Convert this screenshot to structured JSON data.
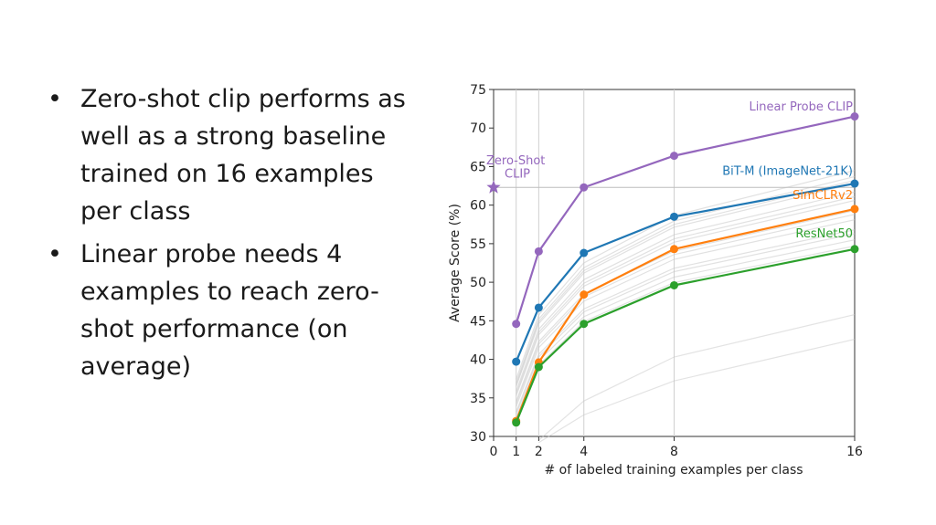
{
  "slide": {
    "bullets": [
      "Zero-shot clip performs as well as a strong baseline trained on 16 examples per class",
      "Linear probe needs 4 examples to reach zero-shot performance (on average)"
    ],
    "bullet_glyph": "•"
  },
  "chart_data": {
    "type": "line",
    "xlabel": "# of labeled training examples per class",
    "ylabel": "Average Score (%)",
    "xlim": [
      0,
      16
    ],
    "ylim": [
      30,
      75
    ],
    "xticks": [
      0,
      1,
      2,
      4,
      8,
      16
    ],
    "yticks": [
      30,
      35,
      40,
      45,
      50,
      55,
      60,
      65,
      70,
      75
    ],
    "grid": "vertical at x ticks",
    "x": [
      1,
      2,
      4,
      8,
      16
    ],
    "series": [
      {
        "name": "Linear Probe CLIP",
        "color": "#9467bd",
        "values": [
          44.6,
          54.0,
          62.3,
          66.4,
          71.5
        ]
      },
      {
        "name": "BiT-M (ImageNet-21K)",
        "color": "#1f77b4",
        "values": [
          39.7,
          46.7,
          53.8,
          58.5,
          62.8
        ]
      },
      {
        "name": "SimCLRv2",
        "color": "#ff7f0e",
        "values": [
          32.0,
          39.6,
          48.4,
          54.3,
          59.5
        ]
      },
      {
        "name": "ResNet50",
        "color": "#2ca02c",
        "values": [
          31.8,
          39.0,
          44.6,
          49.6,
          54.3
        ]
      }
    ],
    "zero_shot": {
      "name": "Zero-Shot CLIP",
      "line1": "Zero-Shot",
      "line2": "CLIP",
      "x": 0,
      "y": 62.3,
      "color": "#9467bd"
    },
    "background_series_color": "#c8c8c8"
  }
}
